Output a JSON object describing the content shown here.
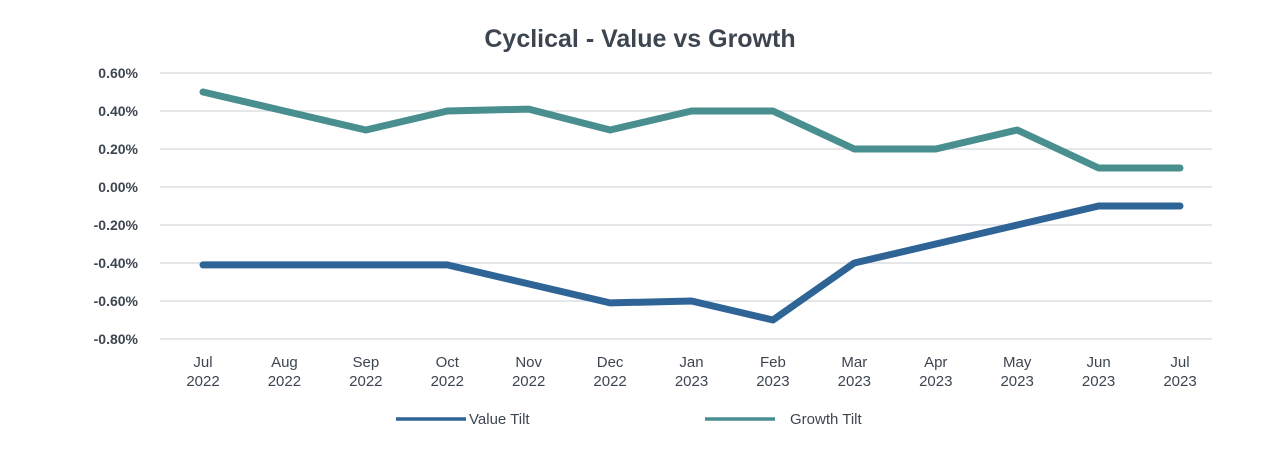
{
  "chart_data": {
    "type": "line",
    "title": "Cyclical - Value vs Growth",
    "categories": [
      "Jul 2022",
      "Aug 2022",
      "Sep 2022",
      "Oct 2022",
      "Nov 2022",
      "Dec 2022",
      "Jan 2023",
      "Feb 2023",
      "Mar 2023",
      "Apr 2023",
      "May 2023",
      "Jun 2023",
      "Jul 2023"
    ],
    "series": [
      {
        "name": "Value Tilt",
        "color": "#2f6496",
        "values": [
          -0.41,
          -0.41,
          -0.41,
          -0.41,
          -0.51,
          -0.61,
          -0.6,
          -0.7,
          -0.4,
          -0.3,
          -0.2,
          -0.1,
          -0.1
        ]
      },
      {
        "name": "Growth Tilt",
        "color": "#4a8f8f",
        "values": [
          0.5,
          0.4,
          0.3,
          0.4,
          0.41,
          0.3,
          0.4,
          0.4,
          0.2,
          0.2,
          0.3,
          0.1,
          0.1
        ]
      }
    ],
    "ylim": [
      -0.8,
      0.6
    ],
    "yticks": [
      0.6,
      0.4,
      0.2,
      0,
      -0.2,
      -0.4,
      -0.6,
      -0.8
    ],
    "ytick_labels": [
      "0.60%",
      "0.40%",
      "0.20%",
      "0.00%",
      "-0.20%",
      "-0.40%",
      "-0.60%",
      "-0.80%"
    ],
    "unit": "%",
    "grid": true,
    "legend_position": "bottom"
  }
}
